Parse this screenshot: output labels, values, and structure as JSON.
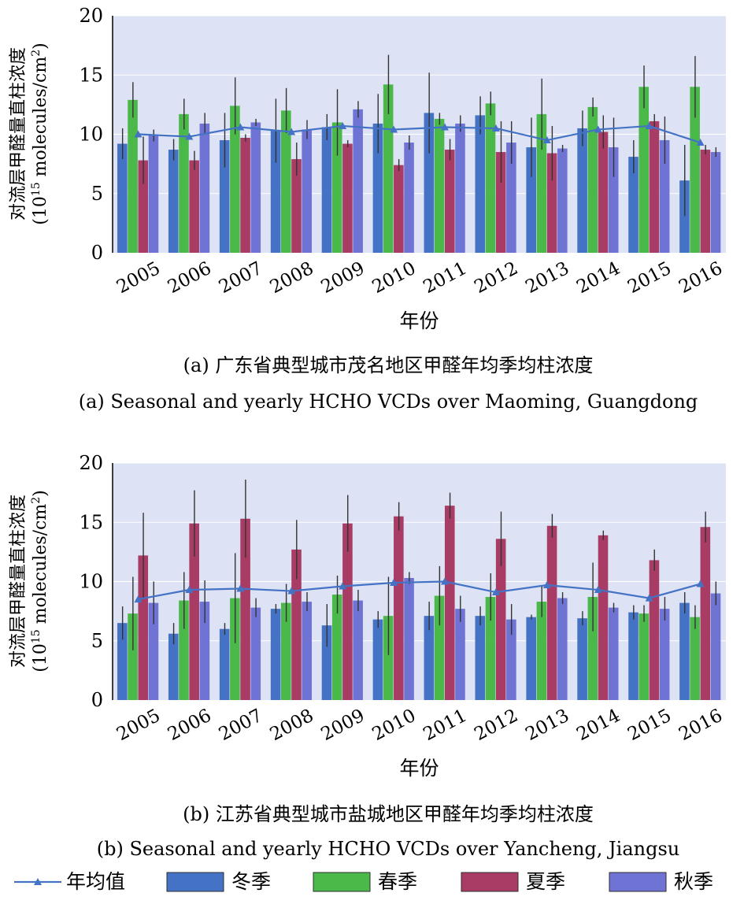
{
  "chart_data": [
    {
      "type": "bar",
      "title_cn": "(a) 广东省典型城市茂名地区甲醛年均季均柱浓度",
      "title_en": "(a) Seasonal and yearly HCHO VCDs over Maoming,  Guangdong",
      "xlabel": "年份",
      "ylabel_line1": "对流层甲醛量直柱浓度",
      "ylabel_line2_pre": "(10",
      "ylabel_line2_sup1": "15",
      "ylabel_line2_mid": " molecules/cm",
      "ylabel_line2_sup2": "2",
      "ylabel_line2_post": ")",
      "ylim": [
        0,
        20
      ],
      "yticks": [
        "0",
        "5",
        "10",
        "15",
        "20"
      ],
      "categories": [
        "2005",
        "2006",
        "2007",
        "2008",
        "2009",
        "2010",
        "2011",
        "2012",
        "2013",
        "2014",
        "2015",
        "2016"
      ],
      "series": [
        {
          "name": "冬季",
          "values": [
            9.2,
            8.7,
            9.5,
            10.3,
            10.6,
            10.9,
            11.8,
            11.6,
            8.9,
            10.5,
            8.1,
            6.1
          ],
          "err": [
            1.3,
            0.9,
            2.3,
            2.7,
            1.1,
            2.5,
            3.4,
            1.6,
            2.5,
            1.5,
            1.4,
            3.0
          ]
        },
        {
          "name": "春季",
          "values": [
            12.9,
            11.7,
            12.4,
            12.0,
            11.0,
            14.2,
            11.3,
            12.6,
            11.7,
            12.3,
            14.0,
            14.0
          ],
          "err": [
            1.5,
            1.3,
            2.4,
            1.9,
            2.8,
            2.5,
            0.5,
            1.0,
            3.0,
            0.8,
            1.8,
            2.6
          ]
        },
        {
          "name": "夏季",
          "values": [
            7.8,
            7.8,
            9.7,
            7.9,
            9.2,
            7.4,
            8.7,
            8.5,
            8.4,
            10.2,
            11.1,
            8.7
          ],
          "err": [
            2.0,
            0.8,
            0.3,
            1.4,
            0.3,
            0.5,
            0.9,
            2.6,
            2.3,
            1.4,
            0.6,
            0.4
          ]
        },
        {
          "name": "秋季",
          "values": [
            9.9,
            10.9,
            11.0,
            10.4,
            12.1,
            9.3,
            10.9,
            9.3,
            8.8,
            8.9,
            9.5,
            8.5
          ],
          "err": [
            0.5,
            0.9,
            0.3,
            0.8,
            0.7,
            0.6,
            0.7,
            1.8,
            0.3,
            2.5,
            2.0,
            0.4
          ]
        }
      ],
      "line": {
        "name": "年均值",
        "values": [
          10.0,
          9.8,
          10.6,
          10.2,
          10.7,
          10.4,
          10.6,
          10.5,
          9.5,
          10.4,
          10.7,
          9.3
        ]
      }
    },
    {
      "type": "bar",
      "title_cn": "(b) 江苏省典型城市盐城地区甲醛年均季均柱浓度",
      "title_en": "(b) Seasonal and yearly HCHO VCDs over Yancheng, Jiangsu",
      "xlabel": "年份",
      "ylabel_line1": "对流层甲醛量直柱浓度",
      "ylabel_line2_pre": "(10",
      "ylabel_line2_sup1": "15",
      "ylabel_line2_mid": " molecules/cm",
      "ylabel_line2_sup2": "2",
      "ylabel_line2_post": ")",
      "ylim": [
        0,
        20
      ],
      "yticks": [
        "0",
        "5",
        "10",
        "15",
        "20"
      ],
      "categories": [
        "2005",
        "2006",
        "2007",
        "2008",
        "2009",
        "2010",
        "2011",
        "2012",
        "2013",
        "2014",
        "2015",
        "2016"
      ],
      "series": [
        {
          "name": "冬季",
          "values": [
            6.5,
            5.6,
            6.0,
            7.7,
            6.3,
            6.8,
            7.1,
            7.1,
            7.0,
            6.9,
            7.4,
            8.2
          ],
          "err": [
            1.4,
            0.9,
            0.5,
            0.4,
            1.8,
            0.7,
            1.2,
            0.8,
            0.2,
            0.6,
            0.6,
            0.9
          ]
        },
        {
          "name": "春季",
          "values": [
            7.3,
            8.4,
            8.6,
            8.2,
            8.9,
            7.1,
            8.8,
            8.7,
            8.3,
            8.7,
            7.3,
            7.0
          ],
          "err": [
            3.1,
            2.4,
            3.8,
            1.6,
            1.6,
            3.3,
            2.5,
            2.0,
            1.3,
            2.9,
            0.7,
            1.0
          ]
        },
        {
          "name": "夏季",
          "values": [
            12.2,
            14.9,
            15.3,
            12.7,
            14.9,
            15.5,
            16.4,
            13.6,
            14.7,
            13.9,
            11.8,
            14.6
          ],
          "err": [
            3.6,
            2.8,
            3.3,
            2.5,
            2.4,
            1.2,
            1.1,
            2.3,
            1.0,
            0.4,
            0.9,
            1.3
          ]
        },
        {
          "name": "秋季",
          "values": [
            8.2,
            8.3,
            7.8,
            8.3,
            8.4,
            10.3,
            7.7,
            6.8,
            8.6,
            7.8,
            7.7,
            9.0
          ],
          "err": [
            1.8,
            1.8,
            0.8,
            0.8,
            0.9,
            0.5,
            1.1,
            1.3,
            0.5,
            0.4,
            1.0,
            1.0
          ]
        }
      ],
      "line": {
        "name": "年均值",
        "values": [
          8.5,
          9.3,
          9.4,
          9.2,
          9.6,
          9.9,
          10.0,
          9.1,
          9.7,
          9.3,
          8.6,
          9.8
        ]
      }
    }
  ],
  "legend": {
    "items": [
      {
        "label": "年均值",
        "kind": "line",
        "color": "#4472c4"
      },
      {
        "label": "冬季",
        "kind": "bar",
        "color": "#4472c4"
      },
      {
        "label": "春季",
        "kind": "bar",
        "color": "#4bb84a"
      },
      {
        "label": "夏季",
        "kind": "bar",
        "color": "#a83c64"
      },
      {
        "label": "秋季",
        "kind": "bar",
        "color": "#6f74d4"
      }
    ]
  },
  "colors": {
    "plot_bg": "#dde2f5",
    "winter": "#4472c4",
    "spring": "#4bb84a",
    "summer": "#a83c64",
    "autumn": "#6f74d4",
    "line": "#4472c4",
    "error": "#333333"
  }
}
